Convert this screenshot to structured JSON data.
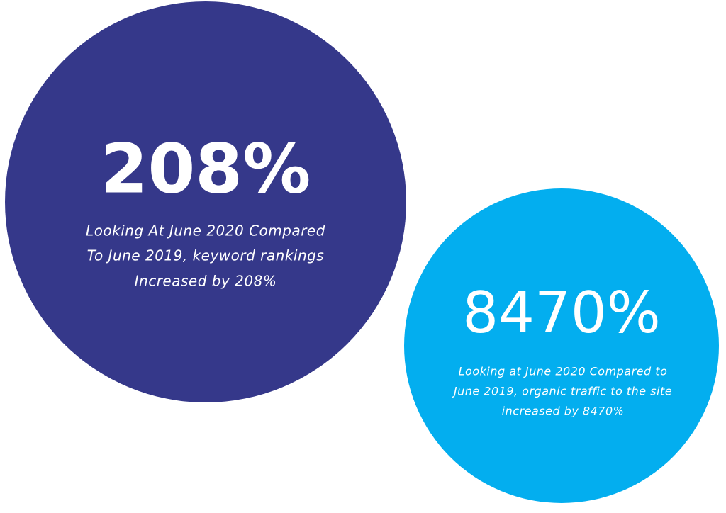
{
  "circles": [
    {
      "headline": "208%",
      "description": [
        "Looking At June 2020 Compared",
        "To June 2019, keyword rankings",
        "Increased by 208%"
      ]
    },
    {
      "headline": "8470%",
      "description": [
        "Looking at June 2020 Compared to",
        "June 2019, organic traffic to the site",
        "increased by 8470%"
      ]
    }
  ]
}
